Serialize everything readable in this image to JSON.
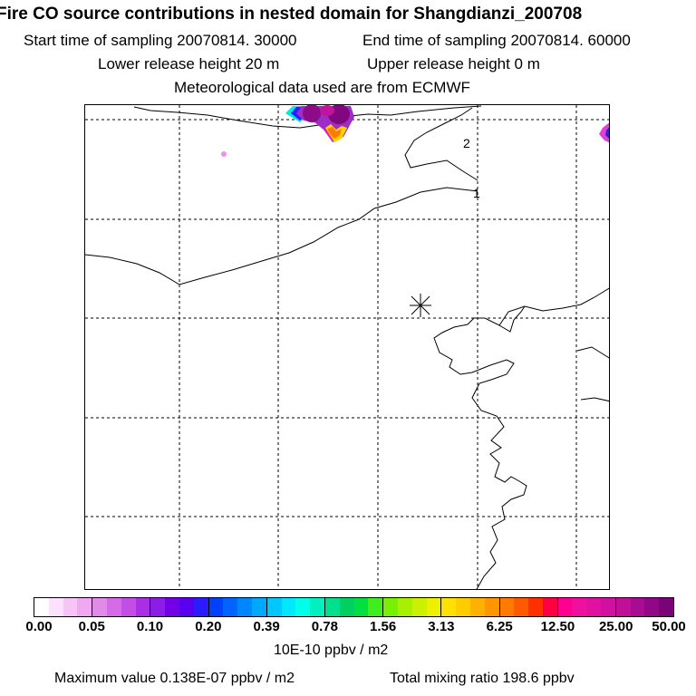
{
  "header": {
    "title": "Fire CO source contributions in nested domain for Shangdianzi_200708",
    "start_label": "Start time of sampling 20070814. 30000",
    "end_label": "End time of sampling 20070814. 60000",
    "lower_label": "Lower release height   20 m",
    "upper_label": "Upper release height    0 m",
    "met_label": "Meteorological data used are from ECMWF"
  },
  "map": {
    "station_marker": "asterisk-icon",
    "contour_labels": [
      "2",
      "1"
    ]
  },
  "colorbar": {
    "tick_labels": [
      "0.00",
      "0.05",
      "0.10",
      "0.20",
      "0.39",
      "0.78",
      "1.56",
      "3.13",
      "6.25",
      "12.50",
      "25.00",
      "50.00"
    ],
    "colors": [
      "#ffffff",
      "#fbe1fb",
      "#f6c4f6",
      "#f0a9f0",
      "#e28ae8",
      "#d46ae6",
      "#c24ee6",
      "#a92ee6",
      "#8b1ee6",
      "#7300e6",
      "#5a00f0",
      "#2a1cff",
      "#0040ff",
      "#0064ff",
      "#0086ff",
      "#00a8ff",
      "#00c8ff",
      "#00e8ff",
      "#00ffe8",
      "#00f0c0",
      "#00e08c",
      "#00d060",
      "#00e040",
      "#40ee20",
      "#78f000",
      "#a8f000",
      "#ccf000",
      "#eef000",
      "#ffe000",
      "#ffcc00",
      "#ffb000",
      "#ff9600",
      "#ff7a00",
      "#ff5a00",
      "#ff3000",
      "#ff0040",
      "#ff0090",
      "#f010a0",
      "#e010a0",
      "#d010a0",
      "#c01098",
      "#a80c90",
      "#900888",
      "#780478"
    ],
    "units": "10E-10 ppbv / m2"
  },
  "footer": {
    "max_label": "Maximum value  0.138E-07 ppbv / m2",
    "total_label": "Total mixing ratio      198.6 ppbv"
  }
}
